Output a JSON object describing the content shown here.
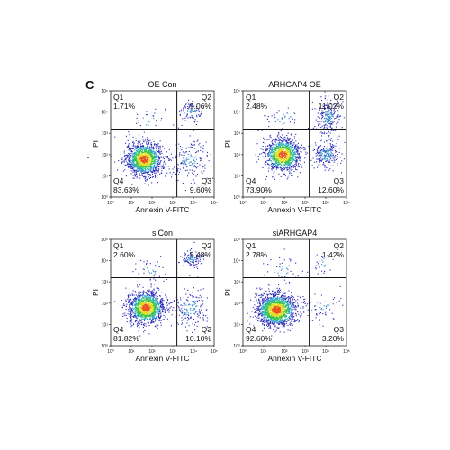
{
  "panel_label": "C",
  "chart_data": [
    {
      "type": "scatter",
      "title": "OE Con",
      "xlabel": "Annexin V-FITC",
      "ylabel": "PI",
      "x_ticks": [
        "10⁰",
        "10¹",
        "10²",
        "10³",
        "10⁴",
        "10⁵"
      ],
      "y_ticks": [
        "10⁰",
        "10¹",
        "10²",
        "10³",
        "10⁴",
        "10⁵"
      ],
      "quadrants": [
        {
          "name": "Q1",
          "value": "1.71%"
        },
        {
          "name": "Q2",
          "value": "5.06%"
        },
        {
          "name": "Q3",
          "value": "9.60%"
        },
        {
          "name": "Q4",
          "value": "83.63%"
        }
      ],
      "gate": {
        "x_log": 3.2,
        "y_log": 3.2
      },
      "populations": [
        {
          "log_x": 1.6,
          "log_y": 1.8,
          "spread_x": 0.45,
          "spread_y": 0.4,
          "n": 1300
        },
        {
          "log_x": 3.8,
          "log_y": 1.8,
          "spread_x": 0.5,
          "spread_y": 0.45,
          "n": 170
        },
        {
          "log_x": 3.9,
          "log_y": 4.0,
          "spread_x": 0.3,
          "spread_y": 0.25,
          "n": 90
        },
        {
          "log_x": 1.8,
          "log_y": 3.6,
          "spread_x": 0.4,
          "spread_y": 0.35,
          "n": 30
        }
      ]
    },
    {
      "type": "scatter",
      "title": "ARHGAP4 OE",
      "xlabel": "Annexin V-FITC",
      "ylabel": "PI",
      "x_ticks": [
        "10⁰",
        "10¹",
        "10²",
        "10³",
        "10⁴",
        "10⁵"
      ],
      "y_ticks": [
        "10⁰",
        "10¹",
        "10²",
        "10³",
        "10⁴",
        "10⁵"
      ],
      "quadrants": [
        {
          "name": "Q1",
          "value": "2.48%"
        },
        {
          "name": "Q2",
          "value": "11.02%"
        },
        {
          "name": "Q3",
          "value": "12.60%"
        },
        {
          "name": "Q4",
          "value": "73.90%"
        }
      ],
      "gate": {
        "x_log": 3.2,
        "y_log": 3.2
      },
      "populations": [
        {
          "log_x": 1.9,
          "log_y": 2.0,
          "spread_x": 0.45,
          "spread_y": 0.4,
          "n": 1100
        },
        {
          "log_x": 4.0,
          "log_y": 2.0,
          "spread_x": 0.35,
          "spread_y": 0.35,
          "n": 230
        },
        {
          "log_x": 4.1,
          "log_y": 3.8,
          "spread_x": 0.3,
          "spread_y": 0.45,
          "n": 240
        },
        {
          "log_x": 1.9,
          "log_y": 3.7,
          "spread_x": 0.4,
          "spread_y": 0.35,
          "n": 40
        }
      ]
    },
    {
      "type": "scatter",
      "title": "siCon",
      "xlabel": "Annexin V-FITC",
      "ylabel": "PI",
      "x_ticks": [
        "10⁰",
        "10¹",
        "10²",
        "10³",
        "10⁴",
        "10⁵"
      ],
      "y_ticks": [
        "10⁰",
        "10¹",
        "10²",
        "10³",
        "10⁴",
        "10⁵"
      ],
      "quadrants": [
        {
          "name": "Q1",
          "value": "2.60%"
        },
        {
          "name": "Q2",
          "value": "5.48%"
        },
        {
          "name": "Q3",
          "value": "10.10%"
        },
        {
          "name": "Q4",
          "value": "81.82%"
        }
      ],
      "gate": {
        "x_log": 3.2,
        "y_log": 3.2
      },
      "populations": [
        {
          "log_x": 1.7,
          "log_y": 1.8,
          "spread_x": 0.45,
          "spread_y": 0.4,
          "n": 1250
        },
        {
          "log_x": 3.8,
          "log_y": 1.8,
          "spread_x": 0.5,
          "spread_y": 0.45,
          "n": 180
        },
        {
          "log_x": 3.9,
          "log_y": 4.1,
          "spread_x": 0.25,
          "spread_y": 0.2,
          "n": 110
        },
        {
          "log_x": 1.9,
          "log_y": 3.6,
          "spread_x": 0.4,
          "spread_y": 0.35,
          "n": 45
        }
      ]
    },
    {
      "type": "scatter",
      "title": "siARHGAP4",
      "xlabel": "Annexin V-FITC",
      "ylabel": "PI",
      "x_ticks": [
        "10⁰",
        "10¹",
        "10²",
        "10³",
        "10⁴",
        "10⁵"
      ],
      "y_ticks": [
        "10⁰",
        "10¹",
        "10²",
        "10³",
        "10⁴",
        "10⁵"
      ],
      "quadrants": [
        {
          "name": "Q1",
          "value": "2.78%"
        },
        {
          "name": "Q2",
          "value": "1.42%"
        },
        {
          "name": "Q3",
          "value": "3.20%"
        },
        {
          "name": "Q4",
          "value": "92.60%"
        }
      ],
      "gate": {
        "x_log": 3.2,
        "y_log": 3.2
      },
      "populations": [
        {
          "log_x": 1.6,
          "log_y": 1.7,
          "spread_x": 0.5,
          "spread_y": 0.4,
          "n": 1500
        },
        {
          "log_x": 3.8,
          "log_y": 1.9,
          "spread_x": 0.45,
          "spread_y": 0.4,
          "n": 60
        },
        {
          "log_x": 3.9,
          "log_y": 3.9,
          "spread_x": 0.35,
          "spread_y": 0.35,
          "n": 30
        },
        {
          "log_x": 1.9,
          "log_y": 3.6,
          "spread_x": 0.4,
          "spread_y": 0.35,
          "n": 45
        }
      ]
    }
  ]
}
